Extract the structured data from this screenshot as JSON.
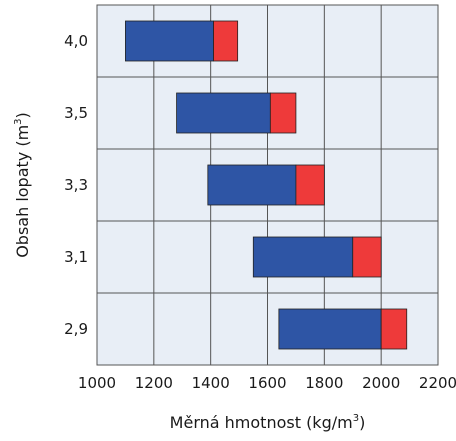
{
  "chart_data": {
    "type": "bar",
    "orientation": "horizontal-range",
    "categories": [
      "4,0",
      "3,5",
      "3,3",
      "3,1",
      "2,9"
    ],
    "series": [
      {
        "color": "#2e55a5",
        "ranges": [
          [
            1100,
            1410
          ],
          [
            1280,
            1610
          ],
          [
            1390,
            1700
          ],
          [
            1550,
            1900
          ],
          [
            1640,
            2000
          ]
        ]
      },
      {
        "color": "#ee3a3a",
        "ranges": [
          [
            1410,
            1495
          ],
          [
            1610,
            1700
          ],
          [
            1700,
            1800
          ],
          [
            1900,
            2000
          ],
          [
            2000,
            2090
          ]
        ]
      }
    ],
    "xlim": [
      1000,
      2200
    ],
    "x_ticks": [
      "1000",
      "1200",
      "1400",
      "1600",
      "1800",
      "2000",
      "2200"
    ],
    "xlabel": {
      "text": "Měrná hmotnost (kg/m",
      "sup": "3",
      "suffix": ")"
    },
    "ylabel": {
      "text": "Obsah lopaty (m",
      "sup": "3",
      "suffix": ")"
    },
    "grid": true,
    "plot_background": "#e8eef6"
  }
}
